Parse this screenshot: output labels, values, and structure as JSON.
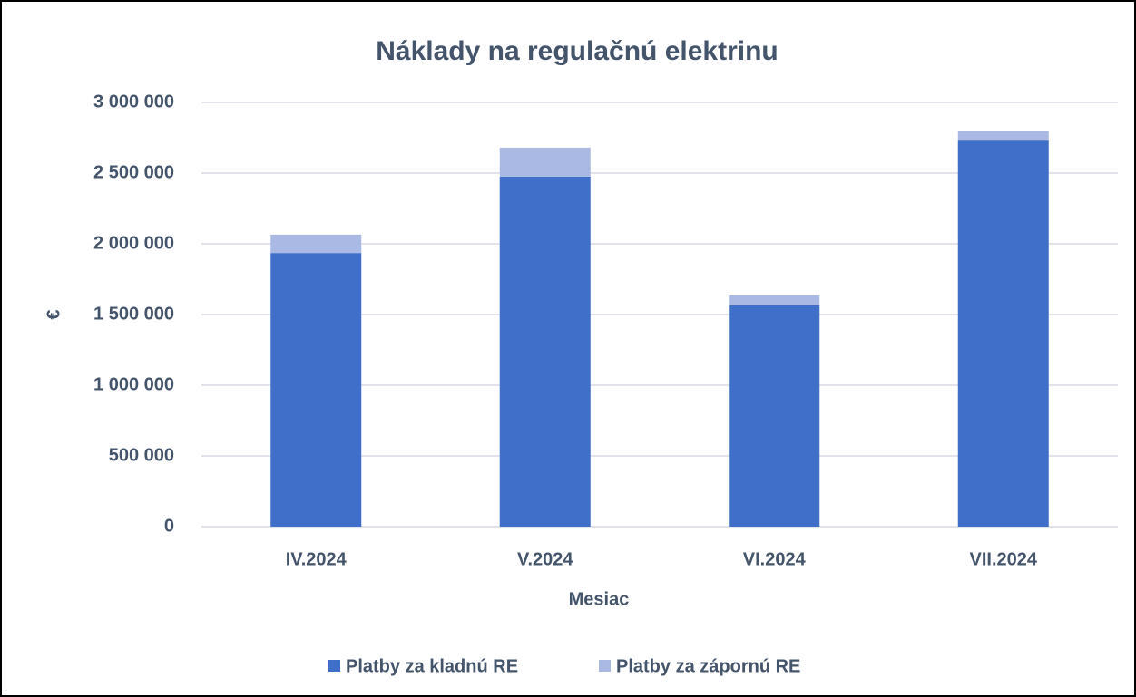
{
  "chart_data": {
    "type": "stacked_bar",
    "title": "Náklady na regulačnú elektrinu",
    "x_label": "Mesiac",
    "y_label": "€",
    "categories": [
      "IV.2024",
      "V.2024",
      "VI.2024",
      "VII.2024"
    ],
    "series": [
      {
        "name": "Platby za kladnú RE",
        "color": "#3f6fc8",
        "values": [
          1935000,
          2475000,
          1565000,
          2730000
        ]
      },
      {
        "name": "Platby za zápornú RE",
        "color": "#aab9e4",
        "values": [
          130000,
          205000,
          70000,
          70000
        ]
      }
    ],
    "ylim": [
      0,
      3000000
    ],
    "yticks": [
      0,
      {
        "value": 500000,
        "label": "500 000"
      },
      {
        "value": 1000000,
        "label": "1 000 000"
      },
      {
        "value": 1500000,
        "label": "1 500 000"
      },
      {
        "value": 2000000,
        "label": "2 000 000"
      },
      {
        "value": 2500000,
        "label": "2 500 000"
      },
      {
        "value": 3000000,
        "label": "3 000 000"
      }
    ],
    "grid": true,
    "legend": "bottom"
  }
}
